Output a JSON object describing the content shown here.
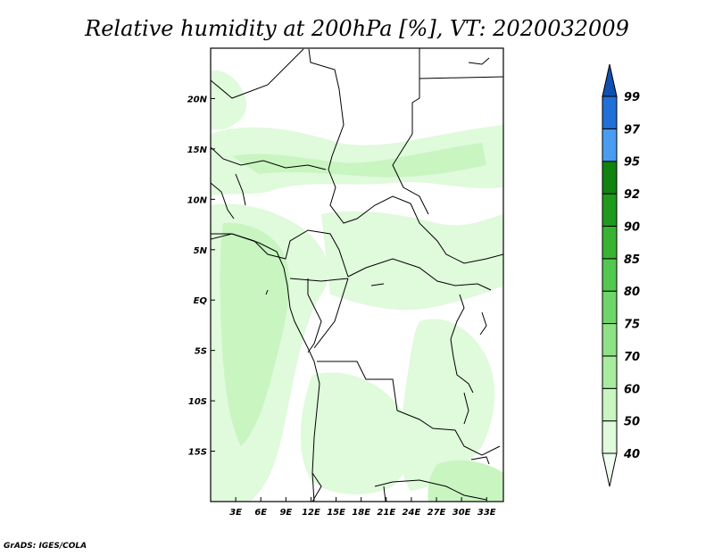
{
  "title": "Relative humidity at 200hPa [%], VT: 2020032009",
  "credit": "GrADS: IGES/COLA",
  "map": {
    "lat_ticks": [
      "20N",
      "15N",
      "10N",
      "5N",
      "EQ",
      "5S",
      "10S",
      "15S"
    ],
    "lat_values": [
      20,
      15,
      10,
      5,
      0,
      -5,
      -10,
      -15
    ],
    "lon_ticks": [
      "3E",
      "6E",
      "9E",
      "12E",
      "15E",
      "18E",
      "21E",
      "24E",
      "27E",
      "30E",
      "33E"
    ],
    "lon_values": [
      3,
      6,
      9,
      12,
      15,
      18,
      21,
      24,
      27,
      30,
      33
    ],
    "lat_range": [
      -20,
      25
    ],
    "lon_range": [
      0,
      35
    ]
  },
  "colorbar": {
    "labels": [
      "40",
      "50",
      "60",
      "70",
      "75",
      "80",
      "85",
      "90",
      "92",
      "95",
      "97",
      "99"
    ],
    "colors": [
      "#f0fff0",
      "#e0fadc",
      "#c8f5c0",
      "#a8eca0",
      "#8ee286",
      "#6ed668",
      "#52c84e",
      "#38b432",
      "#1f9a1c",
      "#108210",
      "#4a9cf0",
      "#2070d8",
      "#1050b0"
    ]
  }
}
